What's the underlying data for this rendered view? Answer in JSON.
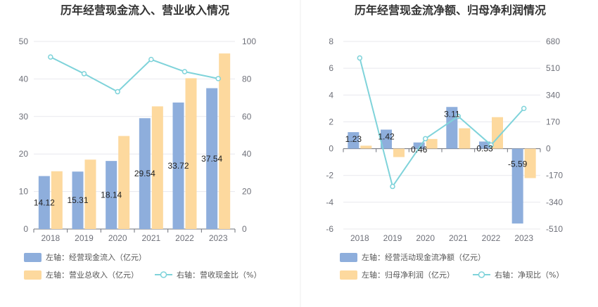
{
  "chart_data": [
    {
      "type": "bar",
      "title": "历年经营现金流入、营业收入情况",
      "categories": [
        "2018",
        "2019",
        "2020",
        "2021",
        "2022",
        "2023"
      ],
      "left_axis": {
        "ylim": [
          0,
          50
        ],
        "ticks": [
          "0",
          "10",
          "20",
          "30",
          "40",
          "50"
        ]
      },
      "right_axis": {
        "ylim": [
          0,
          100
        ],
        "ticks": [
          "0",
          "20",
          "40",
          "60",
          "80",
          "100"
        ]
      },
      "series": [
        {
          "name": "左轴：经营现金流入（亿元）",
          "type": "bar",
          "axis": "left",
          "color": "#8eaedc",
          "values": [
            14.12,
            15.31,
            18.14,
            29.54,
            33.72,
            37.54
          ],
          "labels": [
            "14.12",
            "15.31",
            "18.14",
            "29.54",
            "33.72",
            "37.54"
          ]
        },
        {
          "name": "左轴：营业总收入（亿元）",
          "type": "bar",
          "axis": "left",
          "color": "#fdd99e",
          "values": [
            15.4,
            18.5,
            24.8,
            32.7,
            40.2,
            46.8
          ]
        },
        {
          "name": "右轴：营收现金比（%）",
          "type": "line",
          "axis": "right",
          "color": "#7fd3da",
          "values": [
            91.7,
            82.8,
            73.2,
            90.4,
            83.9,
            80.2
          ]
        }
      ]
    },
    {
      "type": "bar",
      "title": "历年经营现金流净额、归母净利润情况",
      "categories": [
        "2018",
        "2019",
        "2020",
        "2021",
        "2022",
        "2023"
      ],
      "left_axis": {
        "ylim": [
          -6,
          8
        ],
        "ticks": [
          "-6",
          "-4",
          "-2",
          "0",
          "2",
          "4",
          "6",
          "8"
        ]
      },
      "right_axis": {
        "ylim": [
          -510,
          680
        ],
        "ticks": [
          "-510",
          "-340",
          "-170",
          "0",
          "170",
          "340",
          "510",
          "680"
        ]
      },
      "series": [
        {
          "name": "左轴：经营活动现金流净额（亿元）",
          "type": "bar",
          "axis": "left",
          "color": "#8eaedc",
          "values": [
            1.23,
            1.42,
            0.46,
            3.11,
            0.53,
            -5.59
          ],
          "labels": [
            "1.23",
            "1.42",
            "0.46",
            "3.11",
            "0.53",
            "-5.59"
          ]
        },
        {
          "name": "左轴：归母净利润（亿元）",
          "type": "bar",
          "axis": "left",
          "color": "#fdd99e",
          "values": [
            0.22,
            -0.63,
            0.72,
            1.52,
            2.35,
            -2.2
          ]
        },
        {
          "name": "右轴：净现比（%）",
          "type": "line",
          "axis": "right",
          "color": "#7fd3da",
          "values": [
            575,
            -240,
            63,
            205,
            23,
            255
          ]
        }
      ]
    }
  ]
}
